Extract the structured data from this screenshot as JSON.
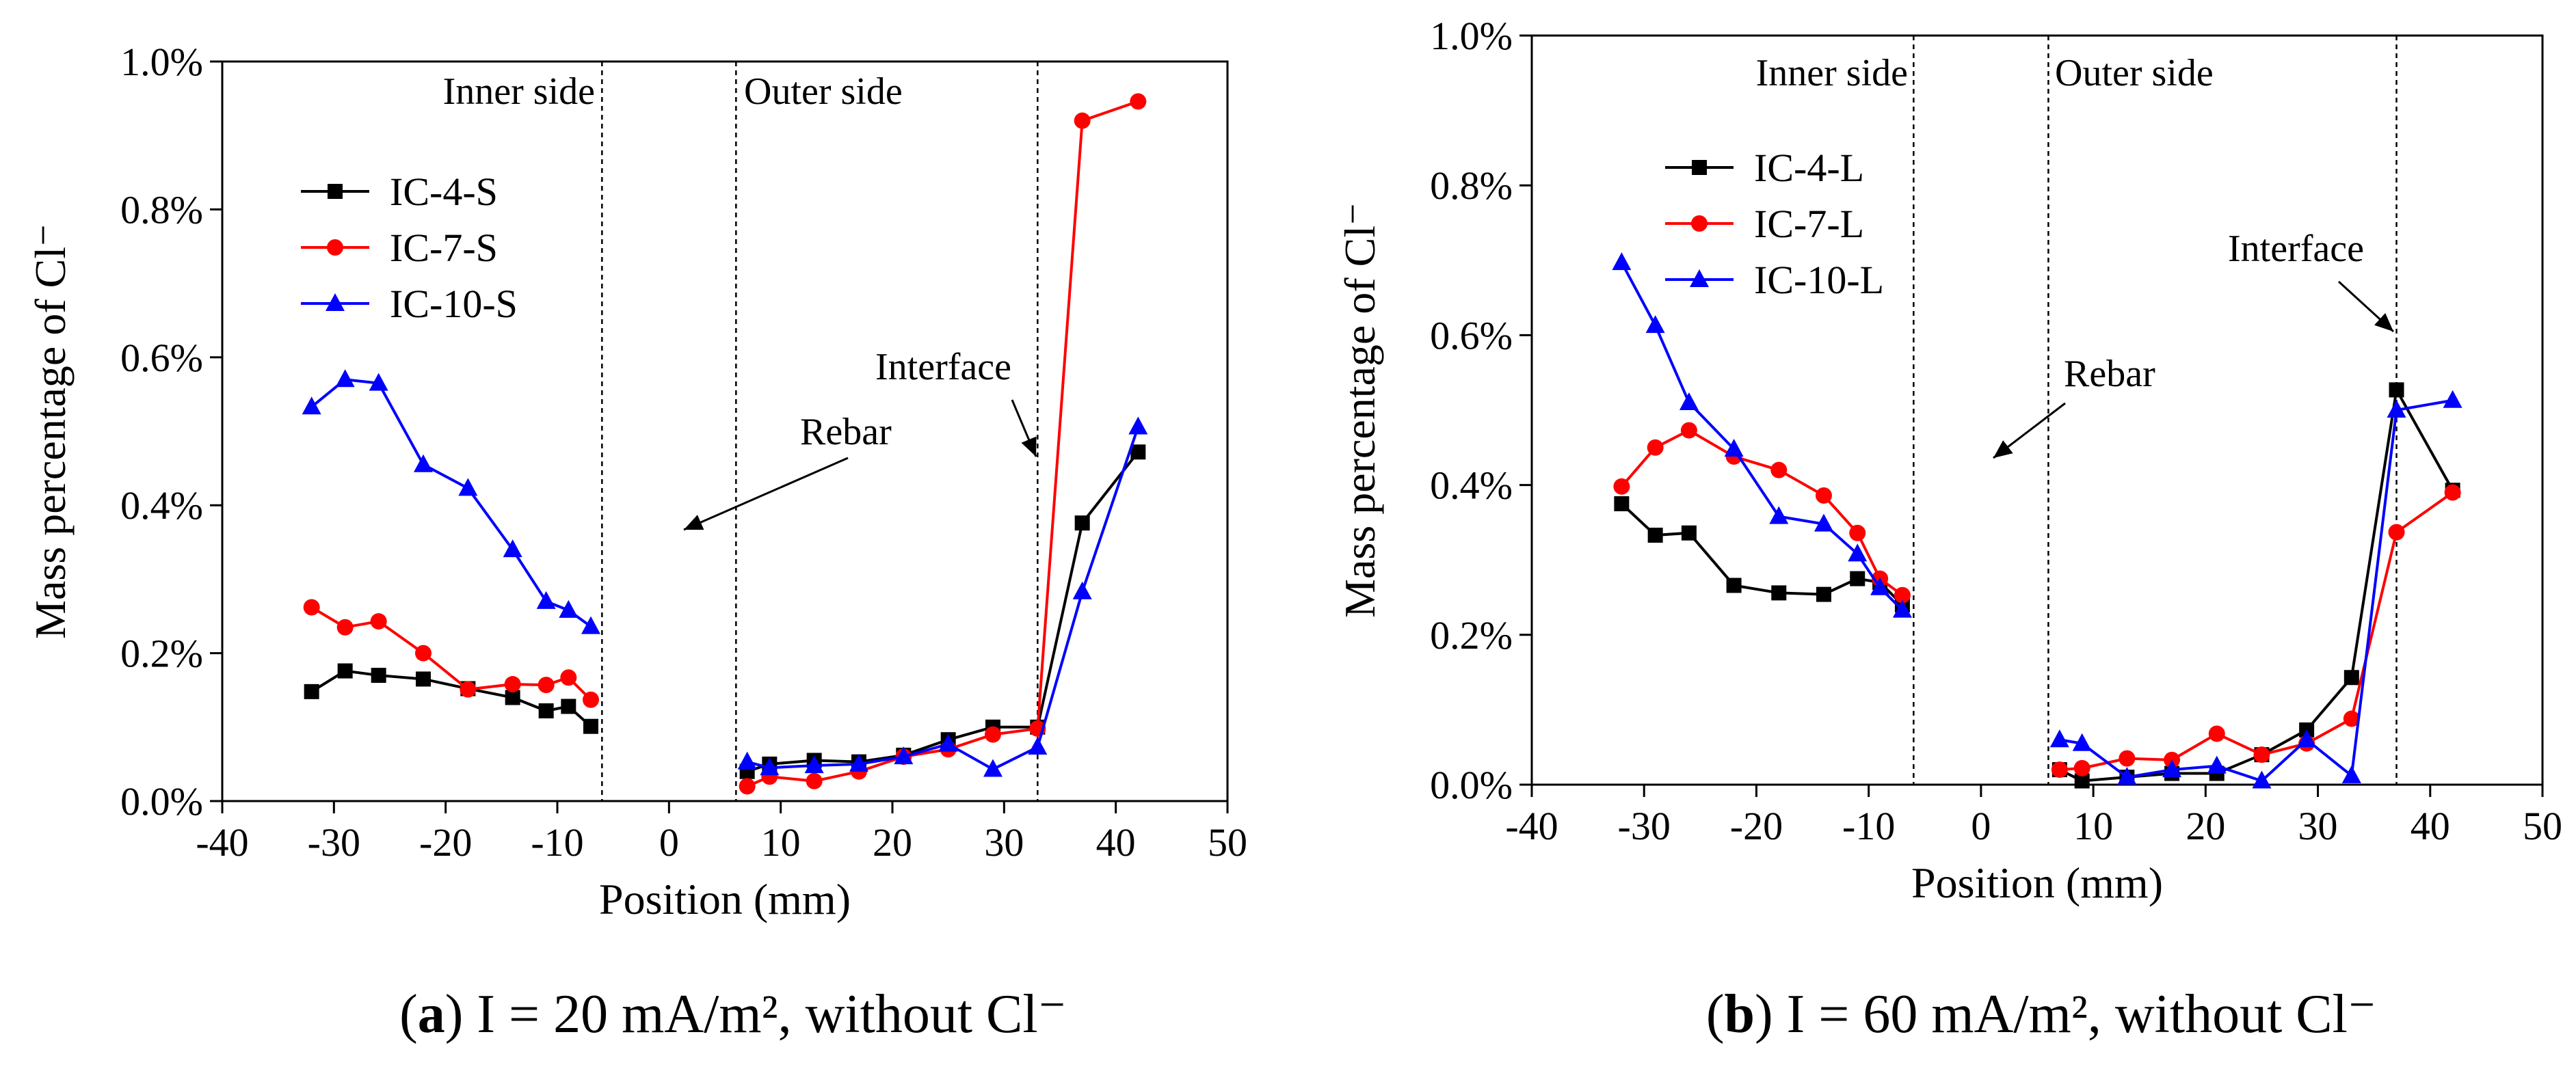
{
  "chart_data": [
    {
      "type": "line",
      "panel_label": "a",
      "caption": "I = 20 mA/m², without Cl⁻",
      "xlabel": "Position (mm)",
      "ylabel": "Mass percentage of Cl⁻",
      "xlim": [
        -40,
        50
      ],
      "ylim": [
        0,
        1.0
      ],
      "x_ticks": [
        -40,
        -30,
        -20,
        -10,
        0,
        10,
        20,
        30,
        40,
        50
      ],
      "y_ticks": [
        0.0,
        0.2,
        0.4,
        0.6,
        0.8,
        1.0
      ],
      "y_tick_labels": [
        "0.0%",
        "0.2%",
        "0.4%",
        "0.6%",
        "0.8%",
        "1.0%"
      ],
      "vlines": [
        -6,
        6,
        33
      ],
      "region_labels": [
        "Inner side",
        "Outer side"
      ],
      "annotations": {
        "rebar": "Rebar",
        "interface": "Interface"
      },
      "legend_placement": "upper-left",
      "series": [
        {
          "name": "IC-4-S",
          "color": "#000000",
          "marker": "square",
          "segments": [
            {
              "x": [
                -32,
                -29,
                -26,
                -22,
                -18,
                -14,
                -11,
                -9,
                -7
              ],
              "y": [
                0.148,
                0.176,
                0.17,
                0.165,
                0.152,
                0.14,
                0.122,
                0.128,
                0.101
              ]
            },
            {
              "x": [
                7,
                9,
                13,
                17,
                21,
                25,
                29,
                33,
                37,
                42
              ],
              "y": [
                0.04,
                0.05,
                0.055,
                0.053,
                0.062,
                0.083,
                0.1,
                0.1,
                0.376,
                0.472
              ]
            }
          ]
        },
        {
          "name": "IC-7-S",
          "color": "#ff0000",
          "marker": "circle",
          "segments": [
            {
              "x": [
                -32,
                -29,
                -26,
                -22,
                -18,
                -14,
                -11,
                -9,
                -7
              ],
              "y": [
                0.262,
                0.235,
                0.243,
                0.2,
                0.151,
                0.158,
                0.157,
                0.167,
                0.137
              ]
            },
            {
              "x": [
                7,
                9,
                13,
                17,
                21,
                25,
                29,
                33,
                37,
                42
              ],
              "y": [
                0.02,
                0.033,
                0.027,
                0.04,
                0.06,
                0.07,
                0.09,
                0.098,
                0.92,
                0.946
              ]
            }
          ]
        },
        {
          "name": "IC-10-S",
          "color": "#0000ff",
          "marker": "triangle",
          "segments": [
            {
              "x": [
                -32,
                -29,
                -26,
                -22,
                -18,
                -14,
                -11,
                -9,
                -7
              ],
              "y": [
                0.533,
                0.57,
                0.565,
                0.455,
                0.423,
                0.34,
                0.27,
                0.258,
                0.236
              ]
            },
            {
              "x": [
                7,
                9,
                13,
                17,
                21,
                25,
                29,
                33,
                37,
                42
              ],
              "y": [
                0.053,
                0.045,
                0.048,
                0.05,
                0.06,
                0.077,
                0.043,
                0.073,
                0.283,
                0.506
              ]
            }
          ]
        }
      ]
    },
    {
      "type": "line",
      "panel_label": "b",
      "caption": "I = 60 mA/m², without Cl⁻",
      "xlabel": "Position (mm)",
      "ylabel": "Mass percentage of Cl⁻",
      "xlim": [
        -40,
        50
      ],
      "ylim": [
        0,
        1.0
      ],
      "x_ticks": [
        -40,
        -30,
        -20,
        -10,
        0,
        10,
        20,
        30,
        40,
        50
      ],
      "y_ticks": [
        0.0,
        0.2,
        0.4,
        0.6,
        0.8,
        1.0
      ],
      "y_tick_labels": [
        "0.0%",
        "0.2%",
        "0.4%",
        "0.6%",
        "0.8%",
        "1.0%"
      ],
      "vlines": [
        -6,
        6,
        37
      ],
      "region_labels": [
        "Inner side",
        "Outer side"
      ],
      "annotations": {
        "rebar": "Rebar",
        "interface": "Interface"
      },
      "legend_placement": "upper-left",
      "series": [
        {
          "name": "IC-4-L",
          "color": "#000000",
          "marker": "square",
          "segments": [
            {
              "x": [
                -32,
                -29,
                -26,
                -22,
                -18,
                -14,
                -11,
                -9,
                -7
              ],
              "y": [
                0.375,
                0.333,
                0.336,
                0.266,
                0.256,
                0.254,
                0.275,
                0.27,
                0.24
              ]
            },
            {
              "x": [
                7,
                9,
                13,
                17,
                21,
                25,
                29,
                33,
                37,
                42
              ],
              "y": [
                0.02,
                0.005,
                0.01,
                0.015,
                0.015,
                0.04,
                0.073,
                0.143,
                0.527,
                0.393
              ]
            }
          ]
        },
        {
          "name": "IC-7-L",
          "color": "#ff0000",
          "marker": "circle",
          "segments": [
            {
              "x": [
                -32,
                -29,
                -26,
                -22,
                -18,
                -14,
                -11,
                -9,
                -7
              ],
              "y": [
                0.398,
                0.45,
                0.473,
                0.438,
                0.42,
                0.386,
                0.336,
                0.275,
                0.253
              ]
            },
            {
              "x": [
                7,
                9,
                13,
                17,
                21,
                25,
                29,
                33,
                37,
                42
              ],
              "y": [
                0.02,
                0.022,
                0.035,
                0.033,
                0.068,
                0.04,
                0.055,
                0.088,
                0.337,
                0.39
              ]
            }
          ]
        },
        {
          "name": "IC-10-L",
          "color": "#0000ff",
          "marker": "triangle",
          "segments": [
            {
              "x": [
                -32,
                -29,
                -26,
                -22,
                -18,
                -14,
                -11,
                -9,
                -7
              ],
              "y": [
                0.697,
                0.613,
                0.51,
                0.448,
                0.358,
                0.348,
                0.308,
                0.263,
                0.233
              ]
            },
            {
              "x": [
                7,
                9,
                13,
                17,
                21,
                25,
                29,
                33,
                37,
                42
              ],
              "y": [
                0.06,
                0.055,
                0.01,
                0.02,
                0.025,
                0.005,
                0.06,
                0.012,
                0.5,
                0.513
              ]
            }
          ]
        }
      ]
    }
  ]
}
